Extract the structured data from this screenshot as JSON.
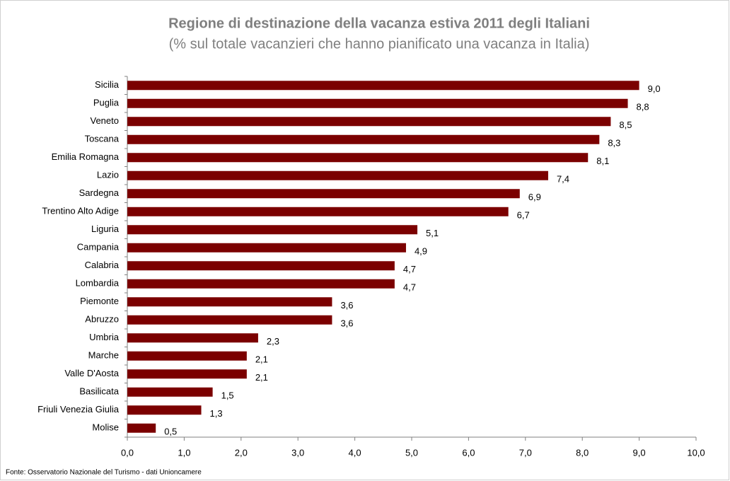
{
  "chart_data": {
    "type": "bar",
    "orientation": "horizontal",
    "title": "Regione di destinazione della vacanza estiva 2011 degli Italiani",
    "subtitle": "(% sul totale vacanzieri che hanno pianificato una vacanza in Italia)",
    "source": "Fonte: Osservatorio Nazionale del Turismo - dati Unioncamere",
    "categories": [
      "Sicilia",
      "Puglia",
      "Veneto",
      "Toscana",
      "Emilia Romagna",
      "Lazio",
      "Sardegna",
      "Trentino Alto Adige",
      "Liguria",
      "Campania",
      "Calabria",
      "Lombardia",
      "Piemonte",
      "Abruzzo",
      "Umbria",
      "Marche",
      "Valle D'Aosta",
      "Basilicata",
      "Friuli Venezia Giulia",
      "Molise"
    ],
    "values": [
      9.0,
      8.8,
      8.5,
      8.3,
      8.1,
      7.4,
      6.9,
      6.7,
      5.1,
      4.9,
      4.7,
      4.7,
      3.6,
      3.6,
      2.3,
      2.1,
      2.1,
      1.5,
      1.3,
      0.5
    ],
    "value_labels": [
      "9,0",
      "8,8",
      "8,5",
      "8,3",
      "8,1",
      "7,4",
      "6,9",
      "6,7",
      "5,1",
      "4,9",
      "4,7",
      "4,7",
      "3,6",
      "3,6",
      "2,3",
      "2,1",
      "2,1",
      "1,5",
      "1,3",
      "0,5"
    ],
    "color": "#7b0000",
    "xlim": [
      0,
      10
    ],
    "xticks": [
      {
        "value": 0,
        "label": "0,0"
      },
      {
        "value": 1,
        "label": "1,0"
      },
      {
        "value": 2,
        "label": "2,0"
      },
      {
        "value": 3,
        "label": "3,0"
      },
      {
        "value": 4,
        "label": "4,0"
      },
      {
        "value": 5,
        "label": "5,0"
      },
      {
        "value": 6,
        "label": "6,0"
      },
      {
        "value": 7,
        "label": "7,0"
      },
      {
        "value": 8,
        "label": "8,0"
      },
      {
        "value": 9,
        "label": "9,0"
      },
      {
        "value": 10,
        "label": "10,0"
      }
    ],
    "grid": false
  }
}
